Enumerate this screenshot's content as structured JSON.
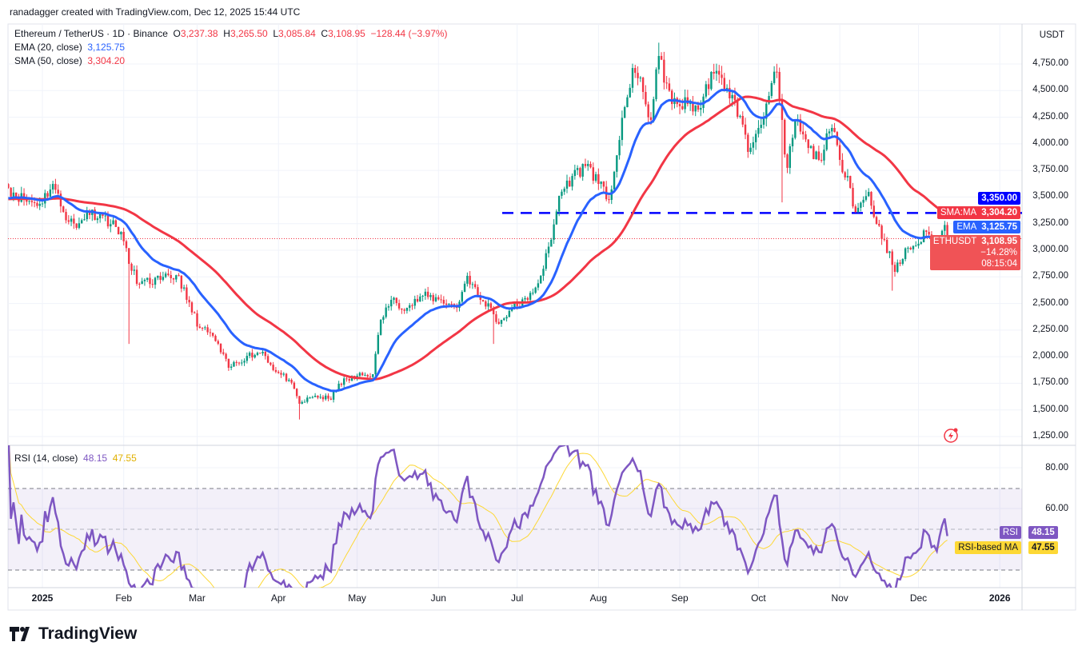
{
  "credit": "ranadagger created with TradingView.com, Dec 12, 2025 15:44 UTC",
  "legend": {
    "symbol": "Ethereum / TetherUS · 1D · Binance",
    "o_label": "O",
    "o": "3,237.38",
    "h_label": "H",
    "h": "3,265.50",
    "l_label": "L",
    "l": "3,085.84",
    "c_label": "C",
    "c": "3,108.95",
    "change": "−128.44 (−3.97%)",
    "ema_label": "EMA (20, close)",
    "ema_value": "3,125.75",
    "sma_label": "SMA (50, close)",
    "sma_value": "3,304.20",
    "rsi_label": "RSI (14, close)",
    "rsi_value": "48.15",
    "rsi_ma_value": "47.55"
  },
  "price_axis": {
    "currency": "USDT",
    "ticks": [
      "4,750.00",
      "4,500.00",
      "4,250.00",
      "4,000.00",
      "3,750.00",
      "3,500.00",
      "3,250.00",
      "3,000.00",
      "2,750.00",
      "2,500.00",
      "2,250.00",
      "2,000.00",
      "1,750.00",
      "1,500.00",
      "1,250.00"
    ],
    "badges": {
      "level": "3,350.00",
      "sma_name": "SMA:MA",
      "sma": "3,304.20",
      "ema_name": "EMA",
      "ema": "3,125.75",
      "symbol_name": "ETHUSDT",
      "price": "3,108.95",
      "pct": "−14.28%",
      "countdown": "08:15:04"
    }
  },
  "rsi_axis": {
    "ticks": [
      "80.00",
      "60.00"
    ],
    "rsi_name": "RSI",
    "rsi": "48.15",
    "ma_name": "RSI-based MA",
    "ma": "47.55"
  },
  "time_axis": [
    "2025",
    "Feb",
    "Mar",
    "Apr",
    "May",
    "Jun",
    "Jul",
    "Aug",
    "Sep",
    "Oct",
    "Nov",
    "Dec",
    "2026"
  ],
  "brand": "TradingView",
  "colors": {
    "up": "#089981",
    "down": "#f23645",
    "ema": "#2962ff",
    "sma": "#f23645",
    "rsi": "#7e57c2",
    "rsi_ma": "#fdd835",
    "level": "#0000ff"
  },
  "chart_data": {
    "type": "candlestick",
    "symbol": "ETHUSDT",
    "interval": "1D",
    "ylim": [
      1250,
      4750
    ],
    "horizontal_level": 3350,
    "last_candle": {
      "date": "2025-12-12",
      "open": 3237.38,
      "high": 3265.5,
      "low": 3085.84,
      "close": 3108.95
    },
    "price_anchors": [
      [
        "2024-12-19",
        3586
      ],
      [
        "2024-12-25",
        3473
      ],
      [
        "2024-12-31",
        3436
      ],
      [
        "2025-01-05",
        3623
      ],
      [
        "2025-01-09",
        3360
      ],
      [
        "2025-01-14",
        3210
      ],
      [
        "2025-01-18",
        3360
      ],
      [
        "2025-01-24",
        3323
      ],
      [
        "2025-01-31",
        3173
      ],
      [
        "2025-02-03",
        2872
      ],
      [
        "2025-02-07",
        2684
      ],
      [
        "2025-02-15",
        2722
      ],
      [
        "2025-02-22",
        2760
      ],
      [
        "2025-02-25",
        2534
      ],
      [
        "2025-03-02",
        2271
      ],
      [
        "2025-03-07",
        2196
      ],
      [
        "2025-03-13",
        1896
      ],
      [
        "2025-03-20",
        2008
      ],
      [
        "2025-03-26",
        2046
      ],
      [
        "2025-03-31",
        1858
      ],
      [
        "2025-04-05",
        1783
      ],
      [
        "2025-04-09",
        1558
      ],
      [
        "2025-04-15",
        1633
      ],
      [
        "2025-04-21",
        1596
      ],
      [
        "2025-04-24",
        1746
      ],
      [
        "2025-05-01",
        1821
      ],
      [
        "2025-05-07",
        1836
      ],
      [
        "2025-05-10",
        2346
      ],
      [
        "2025-05-14",
        2534
      ],
      [
        "2025-05-20",
        2459
      ],
      [
        "2025-05-26",
        2572
      ],
      [
        "2025-06-02",
        2534
      ],
      [
        "2025-06-08",
        2459
      ],
      [
        "2025-06-12",
        2760
      ],
      [
        "2025-06-17",
        2534
      ],
      [
        "2025-06-21",
        2459
      ],
      [
        "2025-06-24",
        2309
      ],
      [
        "2025-06-29",
        2459
      ],
      [
        "2025-07-05",
        2534
      ],
      [
        "2025-07-10",
        2760
      ],
      [
        "2025-07-14",
        3098
      ],
      [
        "2025-07-17",
        3511
      ],
      [
        "2025-07-22",
        3698
      ],
      [
        "2025-07-28",
        3811
      ],
      [
        "2025-08-01",
        3623
      ],
      [
        "2025-08-05",
        3473
      ],
      [
        "2025-08-09",
        4036
      ],
      [
        "2025-08-14",
        4712
      ],
      [
        "2025-08-18",
        4487
      ],
      [
        "2025-08-21",
        4224
      ],
      [
        "2025-08-24",
        4825
      ],
      [
        "2025-08-29",
        4374
      ],
      [
        "2025-09-04",
        4374
      ],
      [
        "2025-09-09",
        4337
      ],
      [
        "2025-09-13",
        4675
      ],
      [
        "2025-09-19",
        4525
      ],
      [
        "2025-09-24",
        4262
      ],
      [
        "2025-09-27",
        3924
      ],
      [
        "2025-10-01",
        4149
      ],
      [
        "2025-10-05",
        4449
      ],
      [
        "2025-10-08",
        4675
      ],
      [
        "2025-10-11",
        3900
      ],
      [
        "2025-10-12",
        3774
      ],
      [
        "2025-10-15",
        4224
      ],
      [
        "2025-10-20",
        3961
      ],
      [
        "2025-10-24",
        3849
      ],
      [
        "2025-10-29",
        4149
      ],
      [
        "2025-11-01",
        3849
      ],
      [
        "2025-11-04",
        3698
      ],
      [
        "2025-11-07",
        3360
      ],
      [
        "2025-11-12",
        3548
      ],
      [
        "2025-11-15",
        3248
      ],
      [
        "2025-11-18",
        3098
      ],
      [
        "2025-11-22",
        2797
      ],
      [
        "2025-11-27",
        3023
      ],
      [
        "2025-12-01",
        3061
      ],
      [
        "2025-12-04",
        3173
      ],
      [
        "2025-12-08",
        3023
      ],
      [
        "2025-12-11",
        3237.38
      ],
      [
        "2025-12-12",
        3108.95
      ]
    ],
    "notable_wicks": [
      [
        "2025-02-03",
        "low",
        2120
      ],
      [
        "2025-04-09",
        "low",
        1410
      ],
      [
        "2025-06-22",
        "low",
        2120
      ],
      [
        "2025-08-24",
        "high",
        4950
      ],
      [
        "2025-10-10",
        "low",
        3450
      ],
      [
        "2025-11-21",
        "low",
        2620
      ]
    ],
    "indicators": [
      "EMA 20",
      "SMA 50",
      "RSI 14",
      "RSI-based MA 14"
    ],
    "rsi_bands": [
      30,
      50,
      70
    ]
  }
}
